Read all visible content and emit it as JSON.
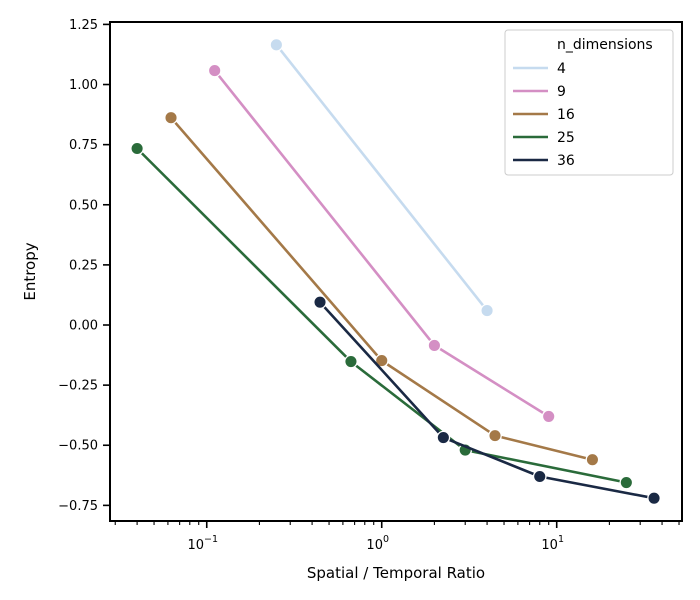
{
  "chart_data": {
    "type": "line",
    "xscale": "log",
    "xlim": [
      0.028,
      52
    ],
    "ylim": [
      -0.815,
      1.26
    ],
    "xlabel": "Spatial / Temporal Ratio",
    "ylabel": "Entropy",
    "title": "",
    "x_ticks": [
      {
        "value": 0.1,
        "base": "10",
        "exp": "−1"
      },
      {
        "value": 1,
        "base": "10",
        "exp": "0"
      },
      {
        "value": 10,
        "base": "10",
        "exp": "1"
      }
    ],
    "y_ticks": [
      {
        "value": 1.25,
        "label": "1.25"
      },
      {
        "value": 1.0,
        "label": "1.00"
      },
      {
        "value": 0.75,
        "label": "0.75"
      },
      {
        "value": 0.5,
        "label": "0.50"
      },
      {
        "value": 0.25,
        "label": "0.25"
      },
      {
        "value": 0.0,
        "label": "0.00"
      },
      {
        "value": -0.25,
        "label": "−0.25"
      },
      {
        "value": -0.5,
        "label": "−0.50"
      },
      {
        "value": -0.75,
        "label": "−0.75"
      }
    ],
    "legend": {
      "title": "n_dimensions",
      "position": "top-right"
    },
    "series": [
      {
        "name": "4",
        "color": "#c6dbef",
        "points": [
          [
            0.25,
            1.165
          ],
          [
            4.0,
            0.06
          ]
        ]
      },
      {
        "name": "9",
        "color": "#d48fc4",
        "points": [
          [
            0.111,
            1.058
          ],
          [
            2.0,
            -0.085
          ],
          [
            9.0,
            -0.38
          ]
        ]
      },
      {
        "name": "16",
        "color": "#a47948",
        "points": [
          [
            0.0625,
            0.862
          ],
          [
            1.0,
            -0.148
          ],
          [
            4.44,
            -0.46
          ],
          [
            16.0,
            -0.56
          ]
        ]
      },
      {
        "name": "25",
        "color": "#2a6b3a",
        "points": [
          [
            0.04,
            0.734
          ],
          [
            0.667,
            -0.152
          ],
          [
            3.0,
            -0.52
          ],
          [
            25.0,
            -0.655
          ]
        ]
      },
      {
        "name": "36",
        "color": "#1a2944",
        "points": [
          [
            0.444,
            0.095
          ],
          [
            2.25,
            -0.468
          ],
          [
            8.0,
            -0.63
          ],
          [
            36.0,
            -0.72
          ]
        ]
      }
    ]
  }
}
